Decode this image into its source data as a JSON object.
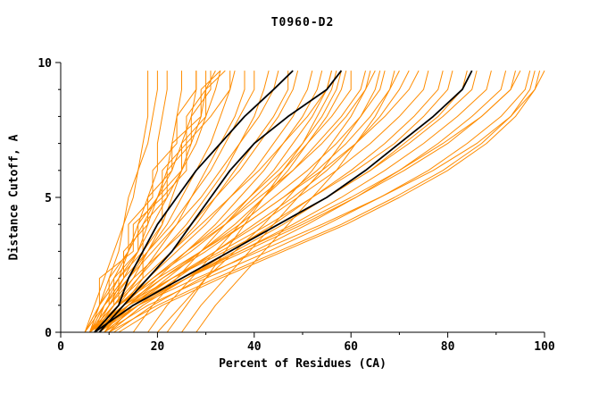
{
  "title": "T0960-D2",
  "chart_data": {
    "type": "line",
    "title": "T0960-D2",
    "xlabel": "Percent of Residues (CA)",
    "ylabel": "Distance Cutoff, A",
    "xlim": [
      0,
      100
    ],
    "ylim": [
      0,
      10
    ],
    "x_ticks": [
      0,
      20,
      40,
      60,
      80,
      100
    ],
    "x_minor_step": 10,
    "y_ticks": [
      0,
      5,
      10
    ],
    "y_minor_step": 1,
    "grid": false,
    "legend_position": "none",
    "colors": {
      "model_lines": "#ff8c00",
      "highlight_lines": "#000000",
      "axis": "#000000"
    },
    "y_levels": [
      0,
      1,
      2,
      3,
      4,
      5,
      6,
      7,
      8,
      9,
      9.7
    ],
    "series_orange": [
      [
        6,
        8,
        10,
        12,
        13,
        15,
        16,
        17,
        18,
        18,
        18
      ],
      [
        5,
        7,
        9,
        11,
        13,
        14,
        16,
        18,
        19,
        20,
        20
      ],
      [
        6,
        9,
        12,
        14,
        16,
        18,
        20,
        20,
        21,
        22,
        22
      ],
      [
        7,
        10,
        13,
        16,
        18,
        20,
        22,
        23,
        24,
        25,
        25
      ],
      [
        6,
        8,
        11,
        14,
        17,
        20,
        23,
        25,
        27,
        28,
        28
      ],
      [
        7,
        11,
        15,
        18,
        21,
        23,
        25,
        27,
        29,
        30,
        30
      ],
      [
        5,
        8,
        12,
        16,
        19,
        22,
        25,
        28,
        30,
        32,
        33
      ],
      [
        6,
        10,
        14,
        18,
        22,
        25,
        28,
        31,
        33,
        35,
        35
      ],
      [
        8,
        12,
        16,
        20,
        24,
        27,
        30,
        33,
        36,
        38,
        38
      ],
      [
        6,
        9,
        13,
        18,
        23,
        27,
        31,
        34,
        37,
        40,
        40
      ],
      [
        7,
        11,
        16,
        21,
        26,
        30,
        34,
        37,
        40,
        42,
        43
      ],
      [
        5,
        9,
        14,
        19,
        24,
        29,
        33,
        37,
        41,
        44,
        45
      ],
      [
        8,
        13,
        18,
        23,
        28,
        32,
        36,
        40,
        44,
        47,
        47
      ],
      [
        6,
        10,
        15,
        21,
        27,
        32,
        37,
        41,
        45,
        48,
        49
      ],
      [
        7,
        12,
        18,
        24,
        30,
        35,
        40,
        44,
        48,
        51,
        52
      ],
      [
        9,
        14,
        20,
        26,
        32,
        37,
        42,
        46,
        50,
        53,
        54
      ],
      [
        6,
        11,
        17,
        23,
        29,
        35,
        41,
        46,
        51,
        55,
        56
      ],
      [
        8,
        13,
        19,
        26,
        33,
        39,
        45,
        50,
        54,
        57,
        58
      ],
      [
        7,
        12,
        19,
        27,
        34,
        40,
        46,
        51,
        56,
        60,
        60
      ],
      [
        10,
        15,
        22,
        29,
        36,
        42,
        48,
        53,
        58,
        62,
        63
      ],
      [
        6,
        12,
        19,
        26,
        34,
        41,
        48,
        54,
        59,
        63,
        65
      ],
      [
        8,
        14,
        21,
        29,
        37,
        44,
        51,
        57,
        62,
        66,
        67
      ],
      [
        7,
        13,
        21,
        30,
        38,
        46,
        53,
        59,
        64,
        68,
        70
      ],
      [
        9,
        16,
        24,
        32,
        40,
        48,
        55,
        61,
        66,
        70,
        72
      ],
      [
        6,
        12,
        20,
        29,
        38,
        46,
        54,
        61,
        67,
        72,
        74
      ],
      [
        8,
        15,
        23,
        32,
        41,
        49,
        57,
        64,
        70,
        75,
        76
      ],
      [
        10,
        17,
        26,
        35,
        44,
        52,
        60,
        67,
        73,
        78,
        79
      ],
      [
        7,
        14,
        23,
        33,
        43,
        52,
        61,
        69,
        75,
        80,
        81
      ],
      [
        9,
        16,
        26,
        36,
        46,
        55,
        64,
        71,
        78,
        83,
        84
      ],
      [
        6,
        13,
        23,
        34,
        45,
        55,
        64,
        72,
        79,
        85,
        86
      ],
      [
        8,
        16,
        26,
        37,
        48,
        58,
        67,
        75,
        82,
        88,
        89
      ],
      [
        11,
        19,
        29,
        40,
        51,
        61,
        70,
        78,
        85,
        91,
        92
      ],
      [
        7,
        15,
        26,
        38,
        50,
        61,
        71,
        80,
        87,
        93,
        94
      ],
      [
        9,
        18,
        30,
        43,
        55,
        66,
        76,
        84,
        91,
        96,
        97
      ],
      [
        12,
        21,
        33,
        46,
        59,
        70,
        80,
        88,
        94,
        98,
        99
      ],
      [
        6,
        14,
        25,
        37,
        49,
        60,
        70,
        79,
        87,
        93,
        95
      ],
      [
        15,
        19,
        24,
        29,
        34,
        39,
        44,
        48,
        52,
        55,
        56
      ],
      [
        18,
        22,
        27,
        32,
        37,
        42,
        47,
        51,
        55,
        58,
        59
      ],
      [
        20,
        25,
        30,
        36,
        42,
        47,
        52,
        56,
        60,
        63,
        64
      ],
      [
        25,
        29,
        34,
        39,
        44,
        49,
        54,
        58,
        62,
        65,
        66
      ],
      [
        22,
        26,
        30,
        34,
        38,
        42,
        46,
        50,
        53,
        56,
        57
      ],
      [
        28,
        32,
        37,
        42,
        47,
        52,
        57,
        61,
        65,
        68,
        69
      ],
      [
        6,
        10,
        10,
        14,
        14,
        19,
        19,
        24,
        24,
        28,
        28
      ],
      [
        8,
        12,
        12,
        17,
        17,
        22,
        22,
        27,
        27,
        31,
        31
      ],
      [
        7,
        9,
        13,
        13,
        18,
        18,
        23,
        23,
        29,
        29,
        33
      ],
      [
        5,
        8,
        8,
        15,
        15,
        21,
        21,
        26,
        26,
        30,
        34
      ],
      [
        9,
        13,
        17,
        17,
        21,
        21,
        26,
        26,
        31,
        35,
        36
      ],
      [
        6,
        11,
        11,
        16,
        16,
        20,
        25,
        25,
        30,
        30,
        32
      ],
      [
        10,
        20,
        32,
        45,
        58,
        69,
        79,
        87,
        93,
        97,
        98
      ],
      [
        7,
        16,
        28,
        41,
        54,
        66,
        77,
        86,
        93,
        98,
        100
      ]
    ],
    "series_black": [
      [
        7,
        12,
        14,
        17,
        20,
        24,
        28,
        33,
        38,
        44,
        48
      ],
      [
        8,
        13,
        18,
        23,
        27,
        31,
        35,
        40,
        47,
        55,
        58
      ],
      [
        7,
        15,
        25,
        35,
        45,
        55,
        63,
        70,
        77,
        83,
        85
      ]
    ]
  }
}
